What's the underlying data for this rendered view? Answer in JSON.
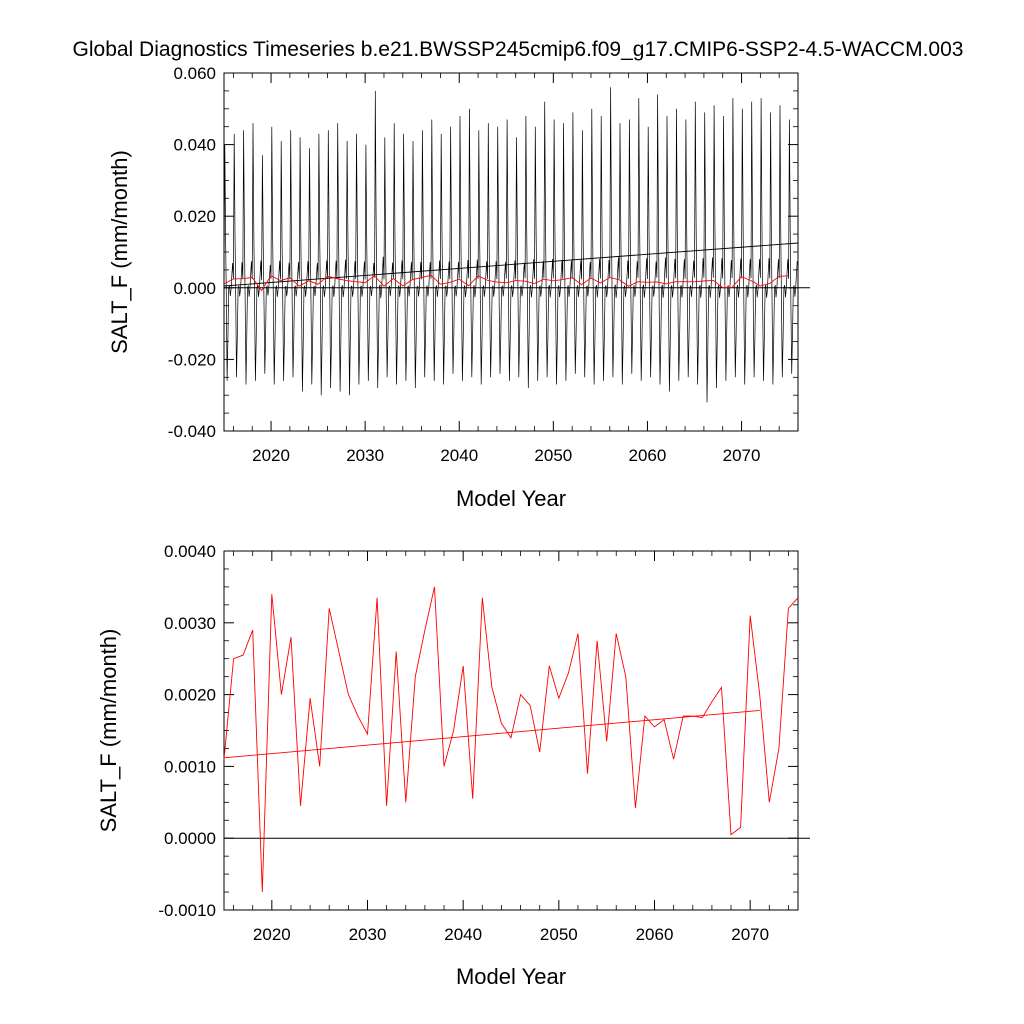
{
  "title": "Global Diagnostics Timeseries b.e21.BWSSP245cmip6.f09_g17.CMIP6-SSP2-4.5-WACCM.003",
  "colors": {
    "monthly_line": "#000000",
    "annual_line": "#ff0000",
    "axis": "#000000",
    "background": "#ffffff"
  },
  "chart_data": [
    {
      "type": "line",
      "title": "",
      "xlabel": "Model Year",
      "ylabel": "SALT_F (mm/month)",
      "xlim": [
        2015,
        2076
      ],
      "ylim": [
        -0.04,
        0.06
      ],
      "x_ticks": [
        2020,
        2030,
        2040,
        2050,
        2060,
        2070
      ],
      "x_tick_labels": [
        "2020",
        "2030",
        "2040",
        "2050",
        "2060",
        "2070"
      ],
      "y_ticks": [
        -0.04,
        -0.02,
        0.0,
        0.02,
        0.04,
        0.06
      ],
      "y_tick_labels": [
        "-0.040",
        "-0.020",
        "0.000",
        "0.020",
        "0.040",
        "0.060"
      ],
      "zero_line": 0,
      "grid": false,
      "series": [
        {
          "color": "#000000",
          "kind": "monthly",
          "x_start": 2015.0,
          "x_step": 0.0833333,
          "cycle_maxima": [
            0.04,
            0.043,
            0.044,
            0.046,
            0.037,
            0.045,
            0.041,
            0.044,
            0.042,
            0.039,
            0.043,
            0.044,
            0.046,
            0.041,
            0.043,
            0.04,
            0.055,
            0.042,
            0.046,
            0.043,
            0.041,
            0.044,
            0.047,
            0.043,
            0.045,
            0.048,
            0.05,
            0.044,
            0.046,
            0.045,
            0.047,
            0.042,
            0.048,
            0.045,
            0.052,
            0.047,
            0.046,
            0.049,
            0.044,
            0.05,
            0.048,
            0.056,
            0.046,
            0.047,
            0.053,
            0.045,
            0.054,
            0.048,
            0.05,
            0.047,
            0.052,
            0.049,
            0.051,
            0.048,
            0.053,
            0.05,
            0.052,
            0.053,
            0.049,
            0.051,
            0.047
          ],
          "cycle_minima": [
            -0.026,
            -0.025,
            -0.027,
            -0.026,
            -0.024,
            -0.027,
            -0.026,
            -0.025,
            -0.029,
            -0.027,
            -0.03,
            -0.028,
            -0.029,
            -0.03,
            -0.027,
            -0.026,
            -0.028,
            -0.025,
            -0.027,
            -0.026,
            -0.028,
            -0.025,
            -0.026,
            -0.027,
            -0.024,
            -0.026,
            -0.025,
            -0.027,
            -0.025,
            -0.024,
            -0.026,
            -0.025,
            -0.028,
            -0.026,
            -0.025,
            -0.027,
            -0.026,
            -0.024,
            -0.025,
            -0.027,
            -0.026,
            -0.025,
            -0.027,
            -0.024,
            -0.026,
            -0.025,
            -0.027,
            -0.029,
            -0.026,
            -0.025,
            -0.027,
            -0.032,
            -0.028,
            -0.026,
            -0.025,
            -0.027,
            -0.025,
            -0.026,
            -0.027,
            -0.025,
            -0.024
          ]
        },
        {
          "color": "#000000",
          "kind": "trend",
          "x": [
            2015,
            2076
          ],
          "y": [
            0.0005,
            0.0125
          ]
        },
        {
          "color": "#ff0000",
          "kind": "annual",
          "x": [
            2015,
            2016,
            2017,
            2018,
            2019,
            2020,
            2021,
            2022,
            2023,
            2024,
            2025,
            2026,
            2027,
            2028,
            2029,
            2030,
            2031,
            2032,
            2033,
            2034,
            2035,
            2036,
            2037,
            2038,
            2039,
            2040,
            2041,
            2042,
            2043,
            2044,
            2045,
            2046,
            2047,
            2048,
            2049,
            2050,
            2051,
            2052,
            2053,
            2054,
            2055,
            2056,
            2057,
            2058,
            2059,
            2060,
            2061,
            2062,
            2063,
            2064,
            2065,
            2066,
            2067,
            2068,
            2069,
            2070,
            2071,
            2072,
            2073,
            2074,
            2075
          ],
          "y": [
            0.0011,
            0.0025,
            0.00255,
            0.0029,
            -0.00075,
            0.0034,
            0.002,
            0.0028,
            0.00045,
            0.00195,
            0.001,
            0.0032,
            0.0026,
            0.002,
            0.0017,
            0.00145,
            0.00335,
            0.00045,
            0.0026,
            0.0005,
            0.00225,
            0.0029,
            0.0035,
            0.001,
            0.0015,
            0.0024,
            0.00055,
            0.00335,
            0.0021,
            0.0016,
            0.0014,
            0.002,
            0.00185,
            0.0012,
            0.0024,
            0.00195,
            0.0023,
            0.00285,
            0.0009,
            0.00275,
            0.00135,
            0.00285,
            0.00225,
            0.00042,
            0.0017,
            0.00155,
            0.00165,
            0.0011,
            0.0017,
            0.0017,
            0.00168,
            0.0019,
            0.0021,
            5e-05,
            0.00015,
            0.0031,
            0.002,
            0.0005,
            0.00125,
            0.0032,
            0.00335
          ]
        }
      ]
    },
    {
      "type": "line",
      "title": "",
      "xlabel": "Model Year",
      "ylabel": "SALT_F (mm/month)",
      "xlim": [
        2015,
        2075
      ],
      "ylim": [
        -0.001,
        0.004
      ],
      "x_ticks": [
        2020,
        2030,
        2040,
        2050,
        2060,
        2070
      ],
      "x_tick_labels": [
        "2020",
        "2030",
        "2040",
        "2050",
        "2060",
        "2070"
      ],
      "y_ticks": [
        -0.001,
        0.0,
        0.001,
        0.002,
        0.003,
        0.004
      ],
      "y_tick_labels": [
        "-0.0010",
        "0.0000",
        "0.0010",
        "0.0020",
        "0.0030",
        "0.0040"
      ],
      "zero_line": 0,
      "grid": false,
      "series": [
        {
          "color": "#ff0000",
          "kind": "annual",
          "x": [
            2015,
            2016,
            2017,
            2018,
            2019,
            2020,
            2021,
            2022,
            2023,
            2024,
            2025,
            2026,
            2027,
            2028,
            2029,
            2030,
            2031,
            2032,
            2033,
            2034,
            2035,
            2036,
            2037,
            2038,
            2039,
            2040,
            2041,
            2042,
            2043,
            2044,
            2045,
            2046,
            2047,
            2048,
            2049,
            2050,
            2051,
            2052,
            2053,
            2054,
            2055,
            2056,
            2057,
            2058,
            2059,
            2060,
            2061,
            2062,
            2063,
            2064,
            2065,
            2066,
            2067,
            2068,
            2069,
            2070,
            2071,
            2072,
            2073,
            2074,
            2075
          ],
          "y": [
            0.0011,
            0.0025,
            0.00255,
            0.0029,
            -0.00075,
            0.0034,
            0.002,
            0.0028,
            0.00045,
            0.00195,
            0.001,
            0.0032,
            0.0026,
            0.002,
            0.0017,
            0.00145,
            0.00335,
            0.00045,
            0.0026,
            0.0005,
            0.00225,
            0.0029,
            0.0035,
            0.001,
            0.0015,
            0.0024,
            0.00055,
            0.00335,
            0.0021,
            0.0016,
            0.0014,
            0.002,
            0.00185,
            0.0012,
            0.0024,
            0.00195,
            0.0023,
            0.00285,
            0.0009,
            0.00275,
            0.00135,
            0.00285,
            0.00225,
            0.00042,
            0.0017,
            0.00155,
            0.00165,
            0.0011,
            0.0017,
            0.0017,
            0.00168,
            0.0019,
            0.0021,
            5e-05,
            0.00015,
            0.0031,
            0.002,
            0.0005,
            0.00125,
            0.0032,
            0.00335
          ]
        },
        {
          "color": "#ff0000",
          "kind": "trend",
          "x": [
            2015,
            2071
          ],
          "y": [
            0.00112,
            0.00178
          ]
        }
      ]
    }
  ]
}
